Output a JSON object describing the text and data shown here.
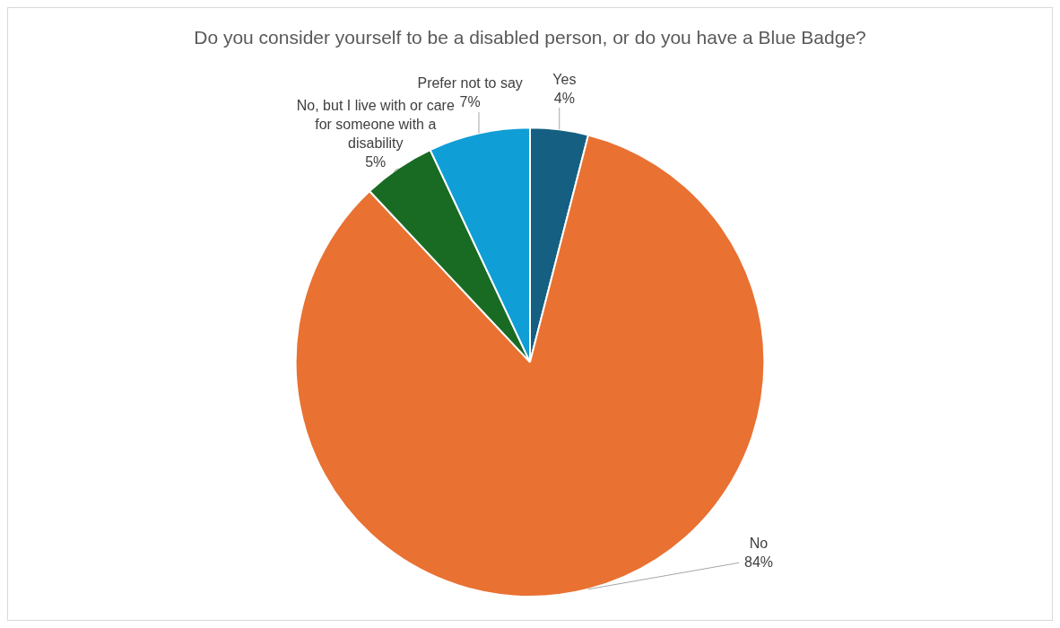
{
  "chart_data": {
    "type": "pie",
    "title": "Do you consider yourself to be a disabled person, or do you have a Blue Badge?",
    "categories": [
      "Yes",
      "No",
      "No, but I live with or care for someone with a disability",
      "Prefer not to say"
    ],
    "values": [
      4,
      84,
      5,
      7
    ],
    "colors": [
      "#156082",
      "#e97132",
      "#196b24",
      "#0f9ed5"
    ],
    "value_labels": [
      "4%",
      "84%",
      "5%",
      "7%"
    ],
    "legend": false
  }
}
